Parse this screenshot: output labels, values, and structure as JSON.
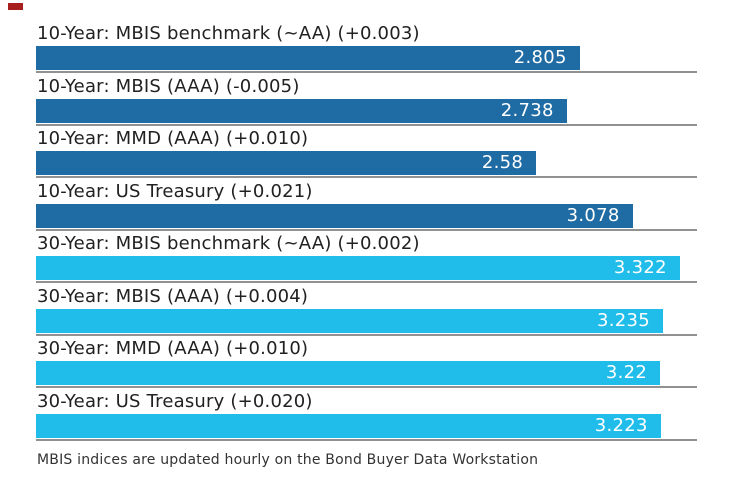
{
  "chart_data": {
    "type": "bar",
    "orientation": "horizontal",
    "title": "",
    "xlabel": "",
    "ylabel": "",
    "xlim": [
      0,
      3.41
    ],
    "grid": false,
    "legend": "none",
    "categories": [
      "10-Year: MBIS benchmark (~AA) (+0.003)",
      "10-Year: MBIS (AAA) (-0.005)",
      "10-Year: MMD (AAA) (+0.010)",
      "10-Year: US Treasury (+0.021)",
      "30-Year: MBIS benchmark (~AA) (+0.002)",
      "30-Year: MBIS (AAA) (+0.004)",
      "30-Year: MMD (AAA) (+0.010)",
      "30-Year: US Treasury (+0.020)"
    ],
    "values": [
      2.805,
      2.738,
      2.58,
      3.078,
      3.322,
      3.235,
      3.22,
      3.223
    ],
    "data_labels": [
      "2.805",
      "2.738",
      "2.58",
      "3.078",
      "3.322",
      "3.235",
      "3.22",
      "3.223"
    ],
    "groups": [
      "10-year",
      "10-year",
      "10-year",
      "10-year",
      "30-year",
      "30-year",
      "30-year",
      "30-year"
    ],
    "colors": {
      "10-year": "#1f6ba3",
      "30-year": "#21bdea"
    },
    "footnote": "MBIS indices are updated hourly on the Bond Buyer Data Workstation"
  },
  "rows": [
    {
      "label": "10-Year: MBIS benchmark (~AA) (+0.003)",
      "value": 2.805,
      "display": "2.805",
      "group": "10-year"
    },
    {
      "label": "10-Year: MBIS (AAA) (-0.005)",
      "value": 2.738,
      "display": "2.738",
      "group": "10-year"
    },
    {
      "label": "10-Year: MMD (AAA) (+0.010)",
      "value": 2.58,
      "display": "2.58",
      "group": "10-year"
    },
    {
      "label": "10-Year: US Treasury (+0.021)",
      "value": 3.078,
      "display": "3.078",
      "group": "10-year"
    },
    {
      "label": "30-Year: MBIS benchmark (~AA) (+0.002)",
      "value": 3.322,
      "display": "3.322",
      "group": "30-year"
    },
    {
      "label": "30-Year: MBIS (AAA) (+0.004)",
      "value": 3.235,
      "display": "3.235",
      "group": "30-year"
    },
    {
      "label": "30-Year: MMD (AAA) (+0.010)",
      "value": 3.22,
      "display": "3.22",
      "group": "30-year"
    },
    {
      "label": "30-Year: US Treasury (+0.020)",
      "value": 3.223,
      "display": "3.223",
      "group": "30-year"
    }
  ],
  "footer": {
    "note": "MBIS indices are updated hourly on the Bond Buyer Data Workstation"
  },
  "ui": {
    "background_color": "#ffffff",
    "separator_color": "#919191",
    "label_color": "#212121",
    "value_text_color": "#ffffff",
    "corner_mark_color": "#a8201d"
  }
}
